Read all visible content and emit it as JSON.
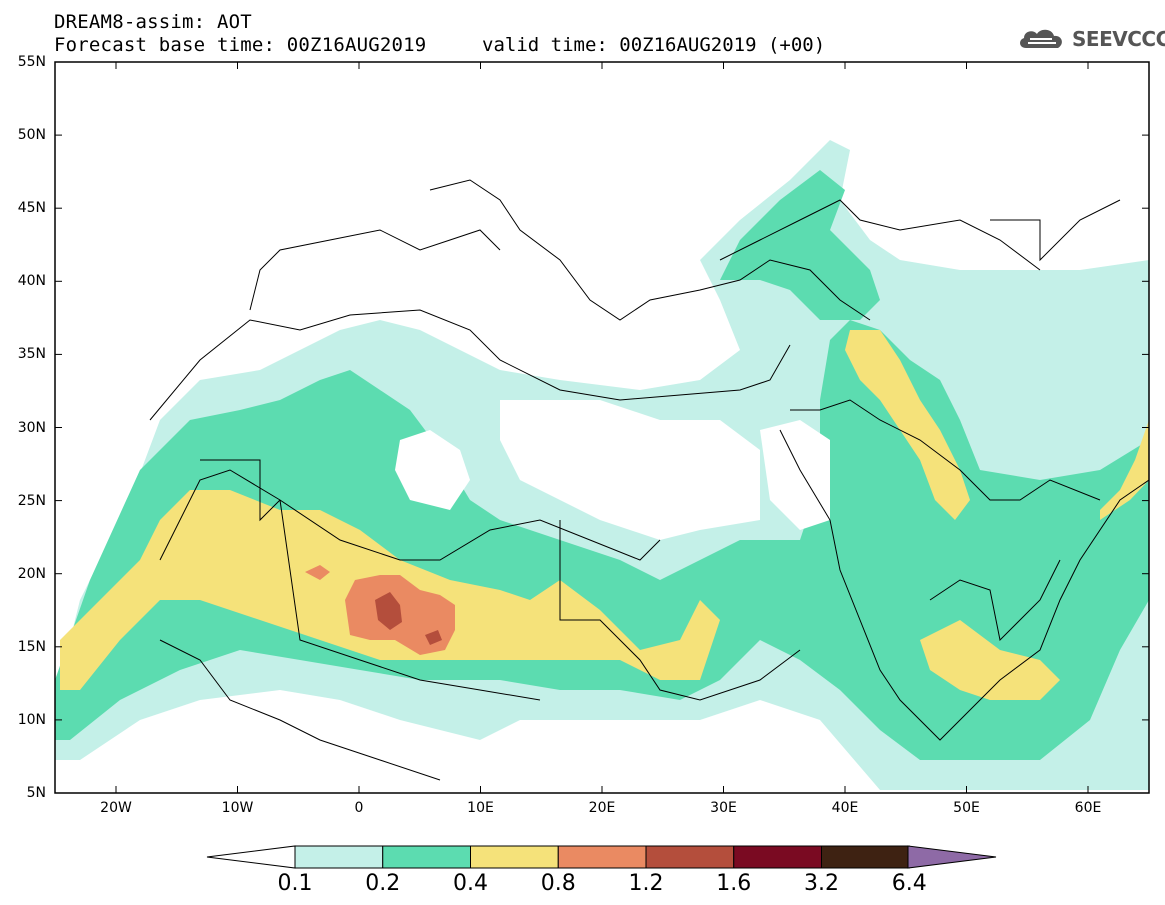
{
  "header": {
    "title": "DREAM8-assim: AOT",
    "base_time": "Forecast base time: 00Z16AUG2019",
    "valid_time": "valid time: 00Z16AUG2019 (+00)",
    "logo_text": "SEEVCCC",
    "logo_icon": "cloud-icon"
  },
  "axes": {
    "lat_labels": [
      "55N",
      "50N",
      "45N",
      "40N",
      "35N",
      "30N",
      "25N",
      "20N",
      "15N",
      "10N",
      "5N"
    ],
    "lon_labels": [
      "20W",
      "10W",
      "0",
      "10E",
      "20E",
      "30E",
      "40E",
      "50E",
      "60E"
    ]
  },
  "colorbar": {
    "labels": [
      "0.1",
      "0.2",
      "0.4",
      "0.8",
      "1.2",
      "1.6",
      "3.2",
      "6.4"
    ],
    "colors": [
      "#c4f0e8",
      "#5cdcb0",
      "#f5e27a",
      "#ea8a62",
      "#b44e3c",
      "#7a0a22",
      "#3e2212",
      "#8e6aa6"
    ]
  },
  "palette": {
    "land": "#ffffff",
    "border": "#000000"
  }
}
